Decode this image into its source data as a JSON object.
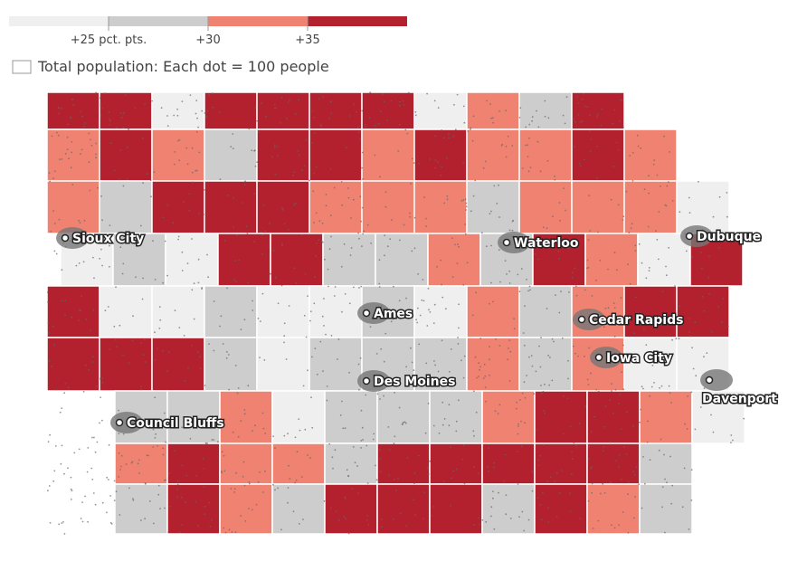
{
  "legend": {
    "colors": [
      "#efeff0",
      "#cdcdcd",
      "#f08272",
      "#b3212e"
    ],
    "labels": [
      "+25 pct. pts.",
      "+30",
      "+35"
    ]
  },
  "population_note": "Total population: Each dot = 100 people",
  "cities": [
    "Sioux City",
    "Waterloo",
    "Dubuque",
    "Ames",
    "Cedar Rapids",
    "Iowa City",
    "Des Moines",
    "Council Bluffs",
    "Davenport"
  ]
}
